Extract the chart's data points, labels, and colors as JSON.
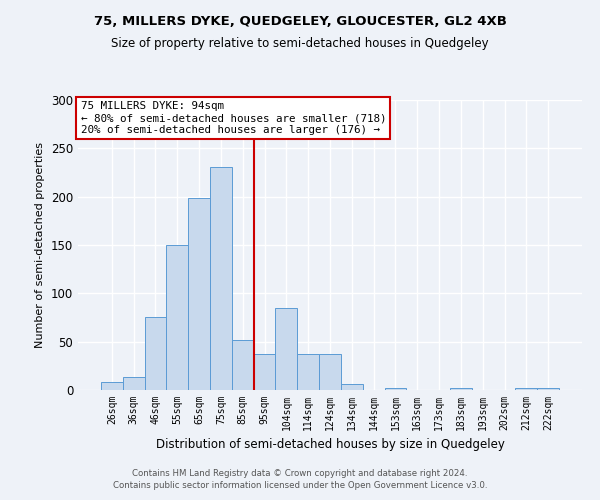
{
  "title": "75, MILLERS DYKE, QUEDGELEY, GLOUCESTER, GL2 4XB",
  "subtitle": "Size of property relative to semi-detached houses in Quedgeley",
  "xlabel": "Distribution of semi-detached houses by size in Quedgeley",
  "ylabel": "Number of semi-detached properties",
  "bar_labels": [
    "26sqm",
    "36sqm",
    "46sqm",
    "55sqm",
    "65sqm",
    "75sqm",
    "85sqm",
    "95sqm",
    "104sqm",
    "114sqm",
    "124sqm",
    "134sqm",
    "144sqm",
    "153sqm",
    "163sqm",
    "173sqm",
    "183sqm",
    "193sqm",
    "202sqm",
    "212sqm",
    "222sqm"
  ],
  "bar_heights": [
    8,
    13,
    76,
    150,
    199,
    231,
    52,
    37,
    85,
    37,
    37,
    6,
    0,
    2,
    0,
    0,
    2,
    0,
    0,
    2,
    2
  ],
  "bar_color": "#c8d9ed",
  "bar_edge_color": "#5b9bd5",
  "vline_color": "#cc0000",
  "annotation_title": "75 MILLERS DYKE: 94sqm",
  "annotation_line1": "← 80% of semi-detached houses are smaller (718)",
  "annotation_line2": "20% of semi-detached houses are larger (176) →",
  "annotation_box_color": "#ffffff",
  "annotation_box_edge": "#cc0000",
  "ylim": [
    0,
    300
  ],
  "yticks": [
    0,
    50,
    100,
    150,
    200,
    250,
    300
  ],
  "footer_line1": "Contains HM Land Registry data © Crown copyright and database right 2024.",
  "footer_line2": "Contains public sector information licensed under the Open Government Licence v3.0.",
  "bg_color": "#eef2f8"
}
